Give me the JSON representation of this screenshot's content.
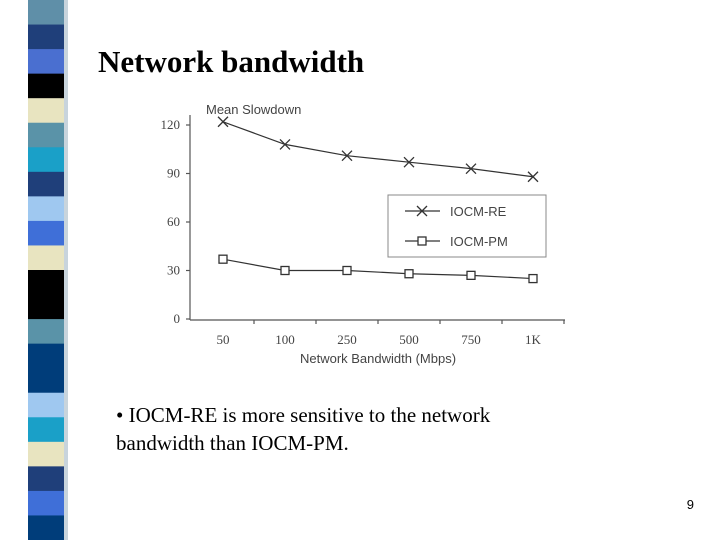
{
  "title": "Network bandwidth",
  "bullet": [
    "• IOCM-RE is more sensitive to the network",
    "bandwidth than IOCM-PM."
  ],
  "page_number": "9",
  "chart_data": {
    "type": "line",
    "y_label": "Mean Slowdown",
    "x_label": "Network Bandwidth (Mbps)",
    "categories": [
      "50",
      "100",
      "250",
      "500",
      "750",
      "1K"
    ],
    "series": [
      {
        "name": "IOCM-RE",
        "color": "#333333",
        "marker": "x",
        "values": [
          122,
          108,
          101,
          97,
          93,
          88
        ]
      },
      {
        "name": "IOCM-PM",
        "color": "#333333",
        "marker": "square",
        "values": [
          37,
          30,
          30,
          28,
          27,
          25
        ]
      }
    ],
    "ylim": [
      0,
      120
    ],
    "yticks": [
      0,
      30,
      60,
      90,
      120
    ],
    "grid": false,
    "legend": "center right"
  }
}
